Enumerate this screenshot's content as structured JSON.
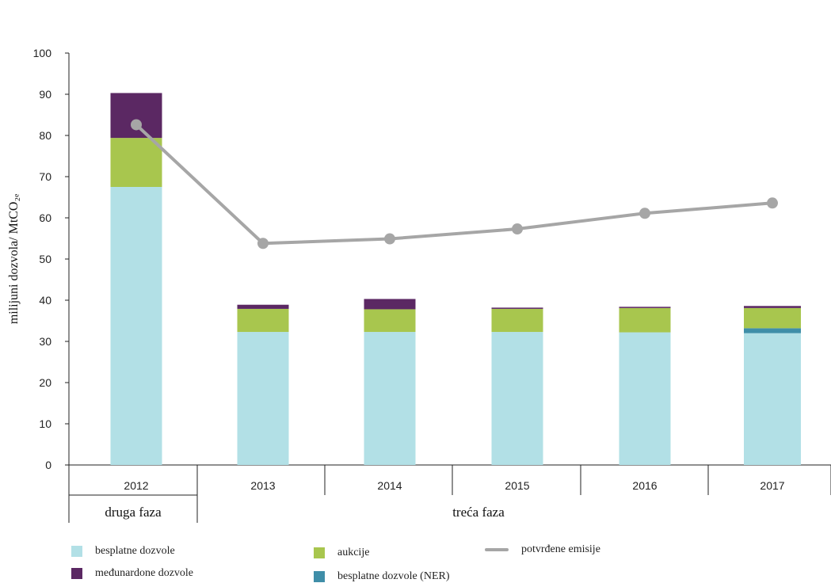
{
  "chart_data": {
    "type": "bar",
    "stacked": true,
    "categories": [
      "2012",
      "2013",
      "2014",
      "2015",
      "2016",
      "2017"
    ],
    "phases": [
      {
        "label": "druga faza",
        "categories": [
          "2012"
        ]
      },
      {
        "label": "treća faza",
        "categories": [
          "2013",
          "2014",
          "2015",
          "2016",
          "2017"
        ]
      }
    ],
    "ylabel": "milijuni dozvola/ MtCO₂ₑ",
    "ylim": [
      0,
      100
    ],
    "yticks": [
      0,
      10,
      20,
      30,
      40,
      50,
      60,
      70,
      80,
      90,
      100
    ],
    "series": [
      {
        "name": "besplatne dozvole",
        "color": "#b2e0e6",
        "values": [
          67.5,
          32.3,
          32.3,
          32.3,
          32.2,
          32.0
        ]
      },
      {
        "name": "besplatne dozvole (NER)",
        "color": "#3f8ea8",
        "values": [
          0,
          0,
          0,
          0,
          0,
          1.2
        ]
      },
      {
        "name": "aukcije",
        "color": "#a8c64e",
        "values": [
          11.9,
          5.6,
          5.5,
          5.6,
          5.9,
          4.9
        ]
      },
      {
        "name": "međunardone dozvole",
        "color": "#5b2863",
        "values": [
          10.9,
          1.0,
          2.5,
          0.3,
          0.3,
          0.5
        ]
      }
    ],
    "line_series": {
      "name": "potvrđene emisije",
      "color": "#a6a6a6",
      "values": [
        82.6,
        53.8,
        54.9,
        57.3,
        61.1,
        63.6
      ]
    },
    "legend_order": [
      "besplatne dozvole",
      "aukcije",
      "potvrđene emisije",
      "međunardone dozvole",
      "besplatne dozvole (NER)"
    ]
  }
}
